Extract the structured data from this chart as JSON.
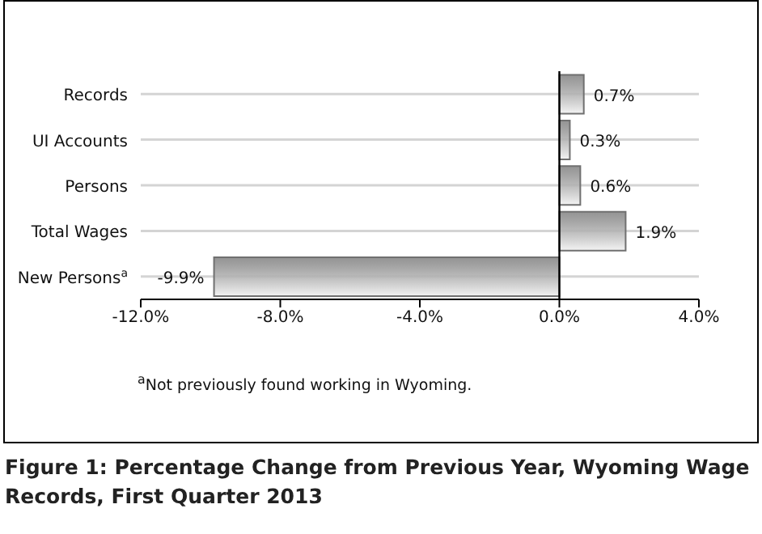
{
  "chart_data": {
    "type": "bar",
    "orientation": "horizontal",
    "title": "Figure 1: Percentage Change from Previous Year, Wyoming Wage Records, First Quarter 2013",
    "categories": [
      "Records",
      "UI Accounts",
      "Persons",
      "Total Wages",
      "New Persons$^{a}$"
    ],
    "values": [
      0.7,
      0.3,
      0.6,
      1.9,
      -9.9
    ],
    "value_labels": [
      "0.7%",
      "0.3%",
      "0.6%",
      "1.9%",
      "-9.9%"
    ],
    "color": "#707070",
    "xlim": [
      -12,
      4
    ],
    "xticks": [
      {
        "value": -12,
        "label": "-12.0%"
      },
      {
        "value": -8,
        "label": "-8.0%"
      },
      {
        "value": -4,
        "label": "-4.0%"
      },
      {
        "value": 0,
        "label": "0.0%"
      },
      {
        "value": 4,
        "label": "4.0%"
      }
    ],
    "grid": "y",
    "ref_lines": [
      {
        "axis": "x",
        "value": 0,
        "color": "#000000"
      }
    ],
    "annotations": [
      "$^{a}$Not previously found working in Wyoming."
    ]
  }
}
